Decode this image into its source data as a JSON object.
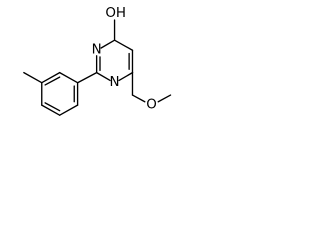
{
  "atoms": {
    "hydroxyl": "OH",
    "ring_nitrogen_upper": "N",
    "ring_nitrogen_lower": "N",
    "ether_oxygen": "O"
  }
}
